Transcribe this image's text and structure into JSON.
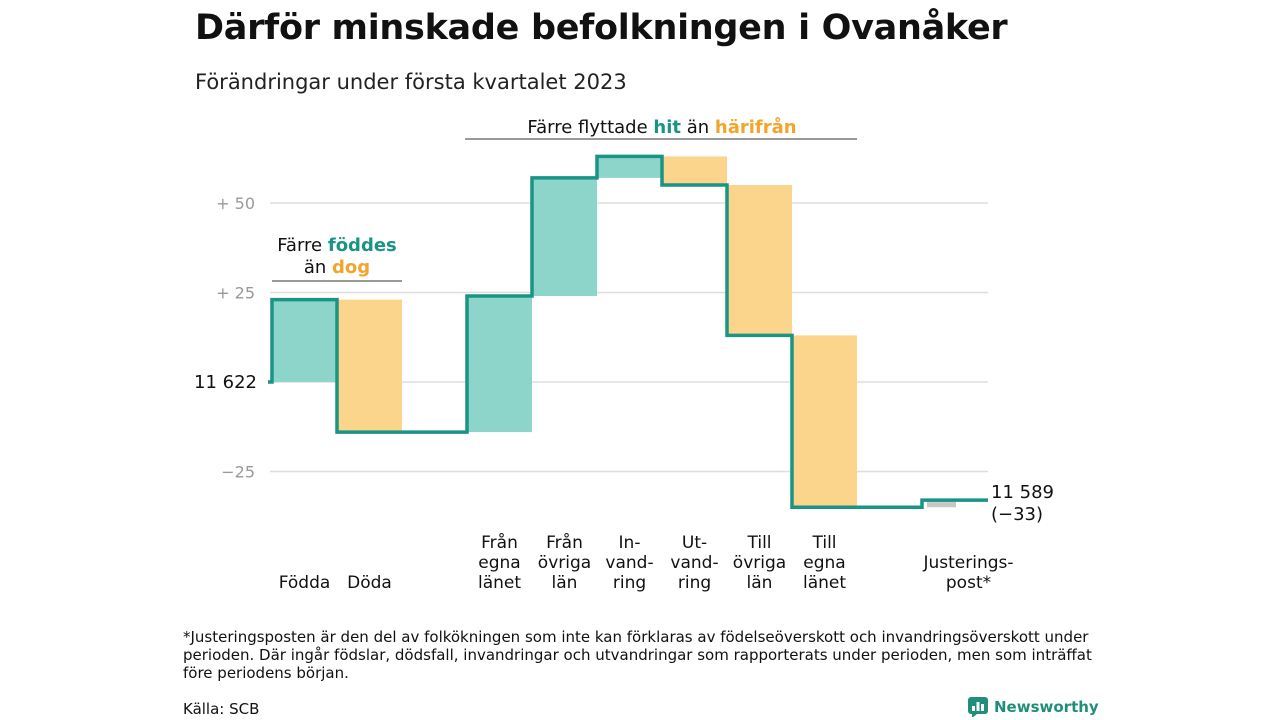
{
  "header": {
    "title": "Därför minskade befolkningen i Ovanåker",
    "subtitle": "Förändringar under första kvartalet 2023"
  },
  "annotations": {
    "births": {
      "line1_prefix": "Färre ",
      "line1_teal": "föddes",
      "line2_prefix": "än ",
      "line2_orange": "dog"
    },
    "migration": {
      "prefix": "Färre flyttade ",
      "teal": "hit",
      "middle": " än ",
      "orange": "härifrån"
    }
  },
  "colors": {
    "teal_line": "#1a9484",
    "teal_fill": "#8dd5cb",
    "orange_fill": "#fbd58c",
    "orange_text": "#f3a42b",
    "gray_fill": "#c8c8c8",
    "grid": "#dddddd",
    "tick_text": "#999999"
  },
  "chart_data": {
    "type": "waterfall",
    "start_value": 11622,
    "start_label": "11 622",
    "end_label_value": "11 589",
    "end_label_change": "(−33)",
    "y_ticks": [
      {
        "value": 50,
        "label": "+ 50"
      },
      {
        "value": 25,
        "label": "+ 25"
      },
      {
        "value": 0,
        "label": ""
      },
      {
        "value": -25,
        "label": "−25"
      }
    ],
    "ylim": [
      -38,
      62
    ],
    "steps": [
      {
        "category": [
          "Födda"
        ],
        "change": 23,
        "kind": "increase"
      },
      {
        "category": [
          "Döda"
        ],
        "change": -37,
        "kind": "decrease"
      },
      {
        "category": [
          "",
          ""
        ],
        "change": 0,
        "kind": "gap"
      },
      {
        "category": [
          "Från",
          "egna",
          "länet"
        ],
        "change": 38,
        "kind": "increase"
      },
      {
        "category": [
          "Från",
          "övriga",
          "län"
        ],
        "change": 33,
        "kind": "increase"
      },
      {
        "category": [
          "In-",
          "vand-",
          "ring"
        ],
        "change": 6,
        "kind": "increase"
      },
      {
        "category": [
          "Ut-",
          "vand-",
          "ring"
        ],
        "change": -8,
        "kind": "decrease"
      },
      {
        "category": [
          "Till",
          "övriga",
          "län"
        ],
        "change": -42,
        "kind": "decrease"
      },
      {
        "category": [
          "Till",
          "egna",
          "länet"
        ],
        "change": -48,
        "kind": "decrease"
      },
      {
        "category": [
          "",
          ""
        ],
        "change": 0,
        "kind": "gap"
      },
      {
        "category": [
          "Justerings-",
          "post*"
        ],
        "change": 2,
        "kind": "adjustment"
      }
    ]
  },
  "footnote": "*Justeringsposten är den del av folkökningen som inte kan förklaras av födelseöverskott och invandringsöverskott under perioden. Där ingår födslar, dödsfall, invandringar och utvandringar som rapporterats under perioden, men som inträffat före periodens början.",
  "source": "Källa: SCB",
  "brand": {
    "name": "Newsworthy",
    "icon": "bar-chart-logo-icon"
  }
}
